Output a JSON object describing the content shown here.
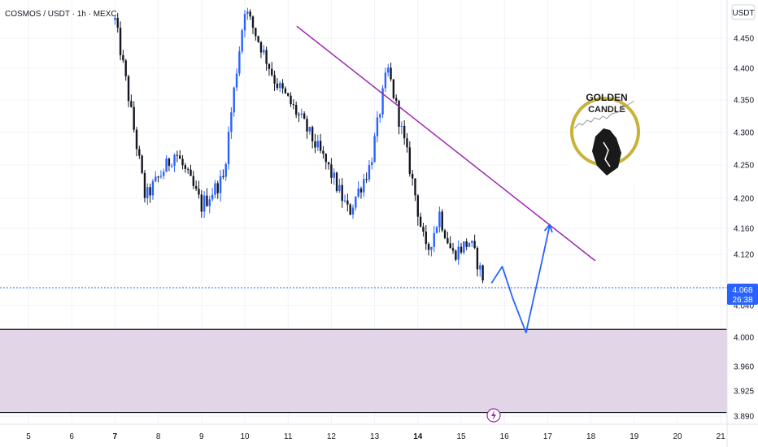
{
  "symbol_title": "COSMOS / USDT · 1h · MEXC",
  "currency_button": "USDT",
  "logo": {
    "line1": "GOLDEN",
    "line2": "CANDLE"
  },
  "current_price": {
    "label": "4.068",
    "countdown": "26:38",
    "value": 4.068
  },
  "replay_icon": "lightning-icon",
  "colors": {
    "background": "#ffffff",
    "candle_up": "#2962ff",
    "candle_down": "#131722",
    "trendline": "#9c27b0",
    "projection": "#2962ff",
    "zone": "#e1d5e7",
    "price_line": "#2962ff"
  },
  "chart_data": {
    "type": "candlestick",
    "title": "COSMOS / USDT · 1h · MEXC",
    "x_ticks": [
      {
        "label": "5",
        "day": 5,
        "bold": false
      },
      {
        "label": "6",
        "day": 6,
        "bold": false
      },
      {
        "label": "7",
        "day": 7,
        "bold": true
      },
      {
        "label": "8",
        "day": 8,
        "bold": false
      },
      {
        "label": "9",
        "day": 9,
        "bold": false
      },
      {
        "label": "10",
        "day": 10,
        "bold": false
      },
      {
        "label": "11",
        "day": 11,
        "bold": false
      },
      {
        "label": "12",
        "day": 12,
        "bold": false
      },
      {
        "label": "13",
        "day": 13,
        "bold": false
      },
      {
        "label": "14",
        "day": 14,
        "bold": true
      },
      {
        "label": "15",
        "day": 15,
        "bold": false
      },
      {
        "label": "16",
        "day": 16,
        "bold": false
      },
      {
        "label": "17",
        "day": 17,
        "bold": false
      },
      {
        "label": "18",
        "day": 18,
        "bold": false
      },
      {
        "label": "19",
        "day": 19,
        "bold": false
      },
      {
        "label": "20",
        "day": 20,
        "bold": false
      },
      {
        "label": "21",
        "day": 21,
        "bold": false
      }
    ],
    "y_ticks": [
      "4.450",
      "4.400",
      "4.350",
      "4.300",
      "4.250",
      "4.200",
      "4.160",
      "4.120",
      "4.040",
      "4.000",
      "3.960",
      "3.925",
      "3.890"
    ],
    "y_tick_values": [
      4.45,
      4.4,
      4.35,
      4.3,
      4.25,
      4.2,
      4.16,
      4.12,
      4.04,
      4.0,
      3.96,
      3.925,
      3.89
    ],
    "grid": true,
    "candle_days": [
      7.0,
      7.7,
      8.4,
      9.0,
      9.5,
      10.0,
      10.7,
      11.3,
      11.9,
      12.4,
      12.9,
      13.3,
      13.8,
      14.2,
      14.5,
      14.8,
      15.2,
      15.55
    ],
    "candle_prices": [
      4.48,
      4.2,
      4.27,
      4.19,
      4.23,
      4.5,
      4.38,
      4.32,
      4.25,
      4.18,
      4.25,
      4.4,
      4.25,
      4.12,
      4.18,
      4.12,
      4.14,
      4.075
    ],
    "trendline": {
      "start": [
        11.2,
        4.47
      ],
      "end": [
        18.1,
        4.11
      ]
    },
    "projection": {
      "days": [
        15.7,
        15.95,
        16.2,
        16.5,
        16.85,
        17.05
      ],
      "prices": [
        4.075,
        4.101,
        4.05,
        4.006,
        4.104,
        4.165
      ]
    },
    "support_zone": {
      "top": 4.01,
      "bottom": 3.895
    }
  }
}
